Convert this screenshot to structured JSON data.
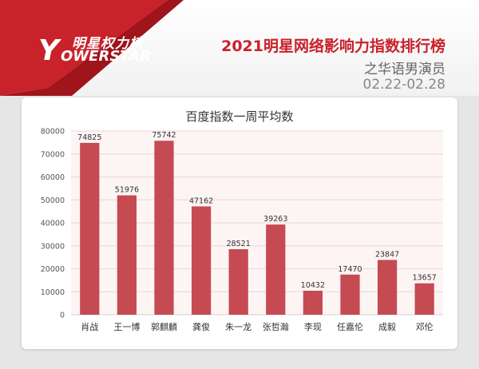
{
  "brand": {
    "logo_mark": "Y",
    "logo_cn": "明星权力榜",
    "logo_en": "OWERSTAR"
  },
  "header": {
    "title": "2021明星网络影响力指数排行榜",
    "subtitle": "之华语男演员",
    "date_range": "02.22-02.28"
  },
  "colors": {
    "bar": "#c64a52",
    "accent": "#c8222a",
    "plot_bg": "#fdf4f4"
  },
  "chart_data": {
    "type": "bar",
    "title": "百度指数一周平均数",
    "categories": [
      "肖战",
      "王一博",
      "郭麒麟",
      "龚俊",
      "朱一龙",
      "张哲瀚",
      "李现",
      "任嘉伦",
      "成毅",
      "邓伦"
    ],
    "values": [
      74825,
      51976,
      75742,
      47162,
      28521,
      39263,
      10432,
      17470,
      23847,
      13657
    ],
    "ylim": [
      0,
      80000
    ],
    "yticks": [
      0,
      10000,
      20000,
      30000,
      40000,
      50000,
      60000,
      70000,
      80000
    ],
    "xlabel": "",
    "ylabel": "",
    "grid": true,
    "data_labels": true
  }
}
